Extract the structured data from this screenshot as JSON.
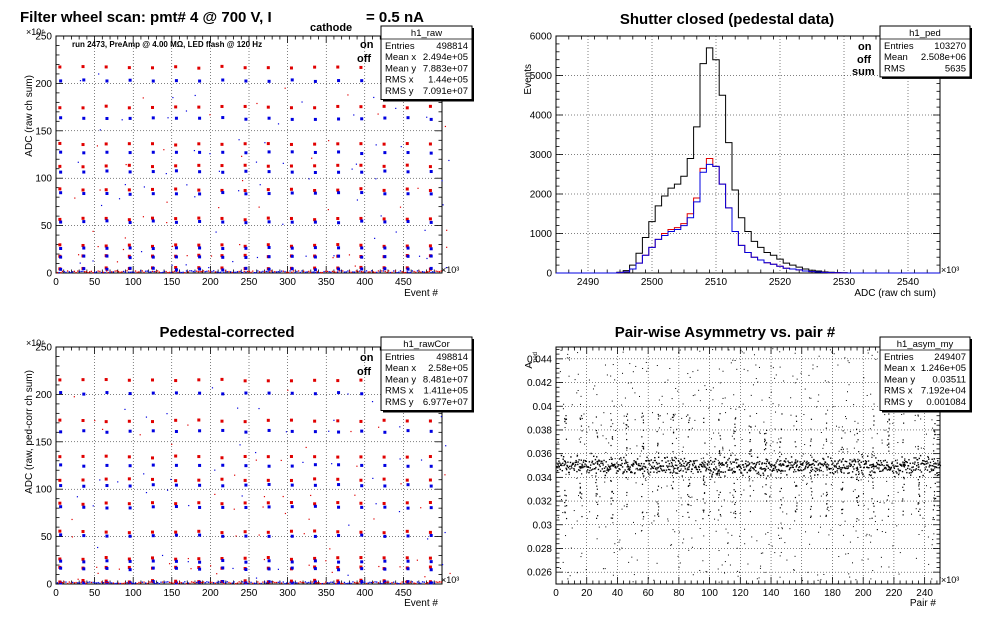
{
  "colors": {
    "background": "#ffffff",
    "on": "#e00000",
    "off": "#0000e0",
    "sum": "#000000",
    "scatter": "#000000"
  },
  "chart_data": [
    {
      "type": "scatter",
      "title": "Filter wheel scan: pmt#   4 @   700 V, I",
      "title_subscript": "cathode",
      "title_suffix": "= 0.5 nA",
      "ylabel": "ADC (raw ch sum)",
      "xlabel": "Event #",
      "x_multiplier": "×10³",
      "y_multiplier": "×10⁶",
      "xlim": [
        0,
        500
      ],
      "ylim": [
        0,
        250
      ],
      "xticks": [
        0,
        50,
        100,
        150,
        200,
        250,
        300,
        350,
        400,
        450
      ],
      "yticks": [
        0,
        50,
        100,
        150,
        200,
        250
      ],
      "annotation": "run 2473, PreAmp @ 4.00 MΩ, LED flash @  120 Hz",
      "legend": [
        {
          "label": "on",
          "color": "#e00000"
        },
        {
          "label": "off",
          "color": "#0000e0"
        }
      ],
      "stats_box": {
        "name": "h1_raw",
        "rows": [
          {
            "label": "Entries",
            "value": "498814"
          },
          {
            "label": "Mean x",
            "value": "2.494e+05"
          },
          {
            "label": "Mean y",
            "value": "7.883e+07"
          },
          {
            "label": "RMS x",
            "value": "1.44e+05"
          },
          {
            "label": "RMS y",
            "value": "7.091e+07"
          }
        ]
      },
      "pattern": {
        "period": 30,
        "levels": [
          {
            "on": 217,
            "off": 203
          },
          {
            "on": 175,
            "off": 163
          },
          {
            "on": 136,
            "off": 127
          },
          {
            "on": 113,
            "off": 107
          },
          {
            "on": 88,
            "off": 84
          },
          {
            "on": 57,
            "off": 54
          },
          {
            "on": 29,
            "off": 26
          },
          {
            "on": 18,
            "off": 17
          },
          {
            "on": 5,
            "off": 4
          }
        ]
      }
    },
    {
      "type": "bar",
      "title": "Shutter closed (pedestal data)",
      "ylabel": "Events",
      "xlabel": "ADC (raw ch sum)",
      "x_multiplier": "×10³",
      "xlim": [
        2485,
        2545
      ],
      "ylim": [
        0,
        6000
      ],
      "xticks": [
        2490,
        2500,
        2510,
        2520,
        2530,
        2540
      ],
      "yticks": [
        0,
        1000,
        2000,
        3000,
        4000,
        5000,
        6000
      ],
      "legend": [
        {
          "label": "on",
          "color": "#e00000"
        },
        {
          "label": "off",
          "color": "#0000e0"
        },
        {
          "label": "sum",
          "color": "#000000"
        }
      ],
      "stats_box": {
        "name": "h1_ped",
        "rows": [
          {
            "label": "Entries",
            "value": "103270"
          },
          {
            "label": "Mean",
            "value": "2.508e+06"
          },
          {
            "label": "RMS",
            "value": "5635"
          }
        ]
      },
      "x": [
        2495,
        2496,
        2497,
        2498,
        2499,
        2500,
        2501,
        2502,
        2503,
        2504,
        2505,
        2506,
        2507,
        2508,
        2509,
        2510,
        2511,
        2512,
        2513,
        2514,
        2515,
        2516,
        2517,
        2518,
        2519,
        2520,
        2521,
        2522,
        2523,
        2524,
        2525,
        2526,
        2527,
        2528,
        2529,
        2530
      ],
      "series": [
        {
          "name": "sum",
          "values": [
            20,
            60,
            200,
            500,
            900,
            1300,
            1700,
            1950,
            2150,
            2250,
            2450,
            2900,
            3700,
            5300,
            5700,
            5400,
            4500,
            3300,
            2100,
            1400,
            1050,
            800,
            650,
            520,
            450,
            350,
            250,
            200,
            150,
            100,
            70,
            50,
            30,
            20,
            10,
            5
          ]
        },
        {
          "name": "on",
          "values": [
            10,
            30,
            100,
            250,
            450,
            650,
            850,
            1000,
            1100,
            1150,
            1250,
            1500,
            1900,
            2650,
            2900,
            2700,
            2250,
            1650,
            1050,
            700,
            520,
            400,
            330,
            260,
            220,
            170,
            120,
            100,
            80,
            50,
            35,
            25,
            15,
            10,
            5,
            3
          ]
        },
        {
          "name": "off",
          "values": [
            10,
            30,
            100,
            250,
            450,
            650,
            850,
            950,
            1050,
            1100,
            1200,
            1400,
            1800,
            2550,
            2750,
            2700,
            2250,
            1650,
            1050,
            700,
            520,
            400,
            330,
            260,
            220,
            170,
            120,
            100,
            80,
            50,
            35,
            25,
            15,
            10,
            5,
            3
          ]
        }
      ]
    },
    {
      "type": "scatter",
      "title": "Pedestal-corrected",
      "ylabel": "ADC (raw, ped-corr ch sum)",
      "xlabel": "Event #",
      "x_multiplier": "×10³",
      "y_multiplier": "×10⁶",
      "xlim": [
        0,
        500
      ],
      "ylim": [
        0,
        250
      ],
      "xticks": [
        0,
        50,
        100,
        150,
        200,
        250,
        300,
        350,
        400,
        450
      ],
      "yticks": [
        0,
        50,
        100,
        150,
        200,
        250
      ],
      "legend": [
        {
          "label": "on",
          "color": "#e00000"
        },
        {
          "label": "off",
          "color": "#0000e0"
        }
      ],
      "stats_box": {
        "name": "h1_rawCor",
        "rows": [
          {
            "label": "Entries",
            "value": "498814"
          },
          {
            "label": "Mean x",
            "value": "2.58e+05"
          },
          {
            "label": "Mean y",
            "value": "8.481e+07"
          },
          {
            "label": "RMS x",
            "value": "1.411e+05"
          },
          {
            "label": "RMS y",
            "value": "6.977e+07"
          }
        ]
      },
      "pattern": {
        "period": 30,
        "levels": [
          {
            "on": 215,
            "off": 201
          },
          {
            "on": 172,
            "off": 161
          },
          {
            "on": 134,
            "off": 125
          },
          {
            "on": 110,
            "off": 104
          },
          {
            "on": 85,
            "off": 81
          },
          {
            "on": 55,
            "off": 51
          },
          {
            "on": 27,
            "off": 24
          },
          {
            "on": 17,
            "off": 16
          },
          {
            "on": 3,
            "off": 2
          }
        ]
      }
    },
    {
      "type": "scatter",
      "title": "Pair-wise Asymmetry vs. pair #",
      "ylabel": "A",
      "ylabel_subscript": "ped",
      "xlabel": "Pair #",
      "x_multiplier": "×10³",
      "xlim": [
        0,
        250
      ],
      "ylim": [
        0.025,
        0.045
      ],
      "xticks": [
        0,
        20,
        40,
        60,
        80,
        100,
        120,
        140,
        160,
        180,
        200,
        220,
        240
      ],
      "yticks": [
        0.026,
        0.028,
        0.03,
        0.032,
        0.034,
        0.036,
        0.038,
        0.04,
        0.042,
        0.044
      ],
      "ytick_labels": [
        "0.026",
        "0.028",
        "0.03",
        "0.032",
        "0.034",
        "0.036",
        "0.038",
        "0.04",
        "0.042",
        "0.044"
      ],
      "stats_box": {
        "name": "h1_asym_my",
        "rows": [
          {
            "label": "Entries",
            "value": "249407"
          },
          {
            "label": "Mean x",
            "value": "1.246e+05"
          },
          {
            "label": "Mean y",
            "value": "0.03511"
          },
          {
            "label": "RMS x",
            "value": "7.192e+04"
          },
          {
            "label": "RMS y",
            "value": "0.001084"
          }
        ]
      },
      "band": {
        "center": 0.035,
        "half_width": 0.0008,
        "spike_period": 10,
        "spike_low": 0.0305,
        "spike_high": 0.0395
      }
    }
  ]
}
